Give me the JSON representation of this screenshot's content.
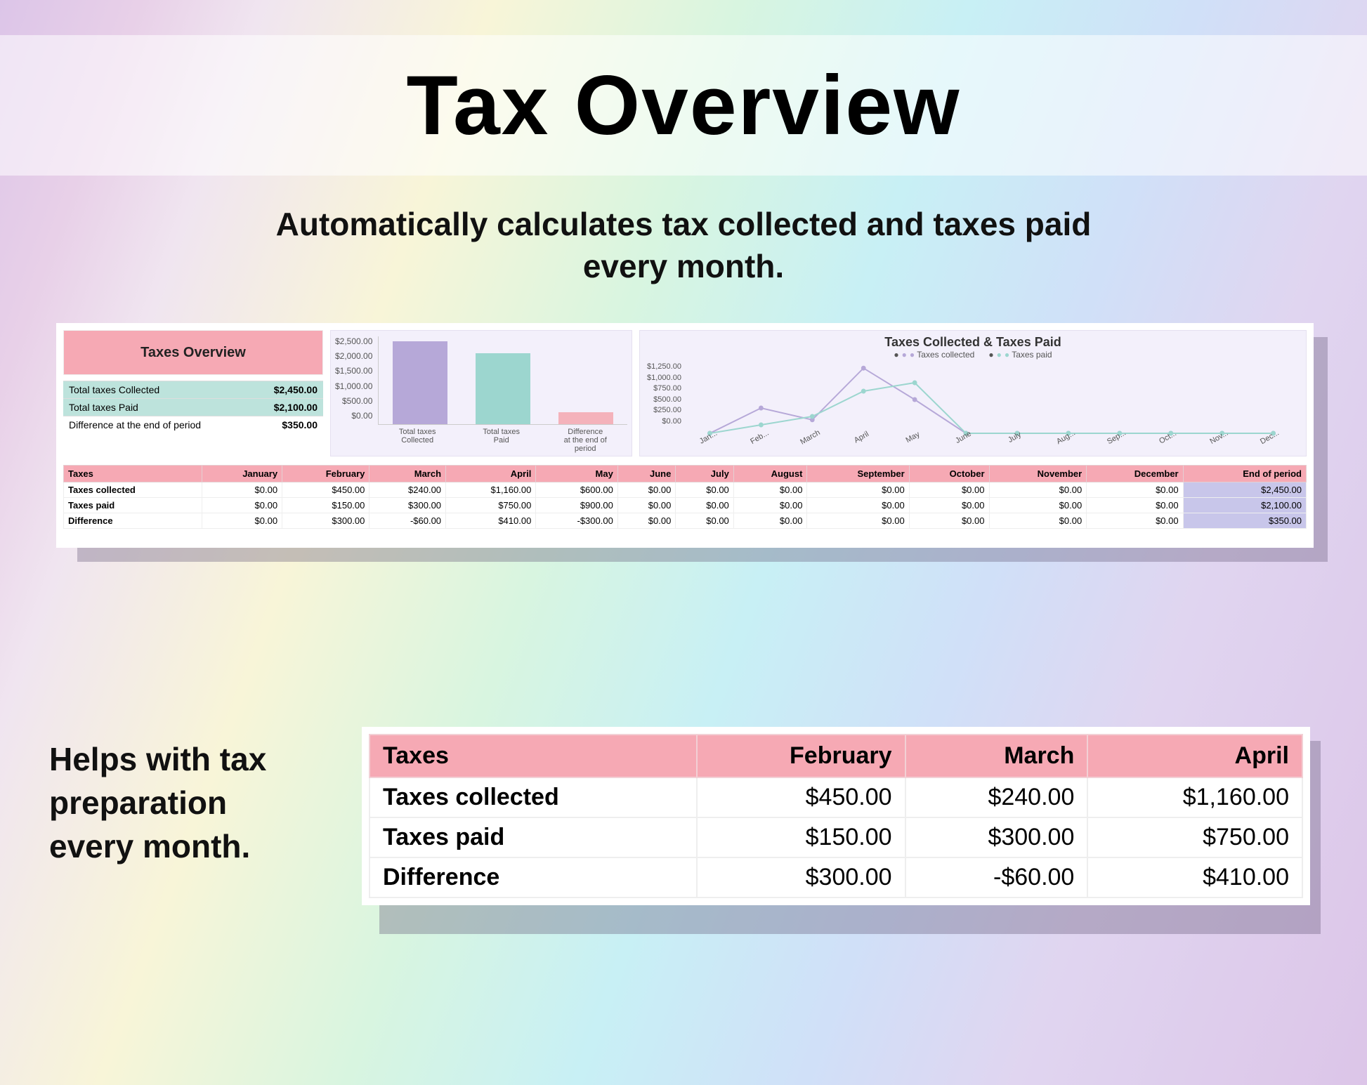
{
  "title": "Tax Overview",
  "subtitle_l1": "Automatically calculates tax collected and taxes paid",
  "subtitle_l2": "every month.",
  "overview": {
    "heading": "Taxes Overview",
    "rows": [
      {
        "label": "Total taxes Collected",
        "value": "$2,450.00",
        "hl": true
      },
      {
        "label": "Total taxes Paid",
        "value": "$2,100.00",
        "hl": true
      },
      {
        "label": "Difference at the end of period",
        "value": "$350.00",
        "hl": false
      }
    ]
  },
  "barchart": {
    "type": "bar",
    "ymax": 2500,
    "yticks": [
      "$2,500.00",
      "$2,000.00",
      "$1,500.00",
      "$1,000.00",
      "$500.00",
      "$0.00"
    ],
    "bars": [
      {
        "label": "Total taxes\nCollected",
        "value": 2450,
        "color": "#b6a8d8"
      },
      {
        "label": "Total taxes\nPaid",
        "value": 2100,
        "color": "#9cd6cf"
      },
      {
        "label": "Difference\nat the end of\nperiod",
        "value": 350,
        "color": "#f4b2bb"
      }
    ],
    "bg": "#f3f0fb"
  },
  "linechart": {
    "type": "line",
    "title": "Taxes Collected & Taxes Paid",
    "legend": [
      {
        "name": "Taxes collected",
        "color": "#b6a8d8"
      },
      {
        "name": "Taxes paid",
        "color": "#9cd6cf"
      }
    ],
    "ymax": 1250,
    "yticks": [
      "$1,250.00",
      "$1,000.00",
      "$750.00",
      "$500.00",
      "$250.00",
      "$0.00"
    ],
    "xlabels": [
      "Jan...",
      "Feb...",
      "March",
      "April",
      "May",
      "June",
      "July",
      "Aug...",
      "Sep...",
      "Oct...",
      "Nov...",
      "Dec..."
    ],
    "series": {
      "collected": [
        0,
        450,
        240,
        1160,
        600,
        0,
        0,
        0,
        0,
        0,
        0,
        0
      ],
      "paid": [
        0,
        150,
        300,
        750,
        900,
        0,
        0,
        0,
        0,
        0,
        0,
        0
      ]
    },
    "bg": "#f3f0fb"
  },
  "month_table": {
    "headers": [
      "Taxes",
      "January",
      "February",
      "March",
      "April",
      "May",
      "June",
      "July",
      "August",
      "September",
      "October",
      "November",
      "December",
      "End of period"
    ],
    "rows": [
      {
        "label": "Taxes collected",
        "cells": [
          "$0.00",
          "$450.00",
          "$240.00",
          "$1,160.00",
          "$600.00",
          "$0.00",
          "$0.00",
          "$0.00",
          "$0.00",
          "$0.00",
          "$0.00",
          "$0.00"
        ],
        "eop": "$2,450.00"
      },
      {
        "label": "Taxes paid",
        "cells": [
          "$0.00",
          "$150.00",
          "$300.00",
          "$750.00",
          "$900.00",
          "$0.00",
          "$0.00",
          "$0.00",
          "$0.00",
          "$0.00",
          "$0.00",
          "$0.00"
        ],
        "eop": "$2,100.00"
      },
      {
        "label": "Difference",
        "cells": [
          "$0.00",
          "$300.00",
          "-$60.00",
          "$410.00",
          "-$300.00",
          "$0.00",
          "$0.00",
          "$0.00",
          "$0.00",
          "$0.00",
          "$0.00",
          "$0.00"
        ],
        "eop": "$350.00"
      }
    ]
  },
  "bottom_text_l1": "Helps with tax",
  "bottom_text_l2": "preparation",
  "bottom_text_l3": "every month.",
  "detail_table": {
    "headers": [
      "Taxes",
      "February",
      "March",
      "April"
    ],
    "rows": [
      {
        "label": "Taxes collected",
        "cells": [
          "$450.00",
          "$240.00",
          "$1,160.00"
        ]
      },
      {
        "label": "Taxes paid",
        "cells": [
          "$150.00",
          "$300.00",
          "$750.00"
        ]
      },
      {
        "label": "Difference",
        "cells": [
          "$300.00",
          "-$60.00",
          "$410.00"
        ]
      }
    ]
  },
  "colors": {
    "pink_header": "#f6a9b4",
    "teal_row": "#bde3dc",
    "eop_cell": "#c8c6ea",
    "panel_bg": "#ffffff"
  }
}
